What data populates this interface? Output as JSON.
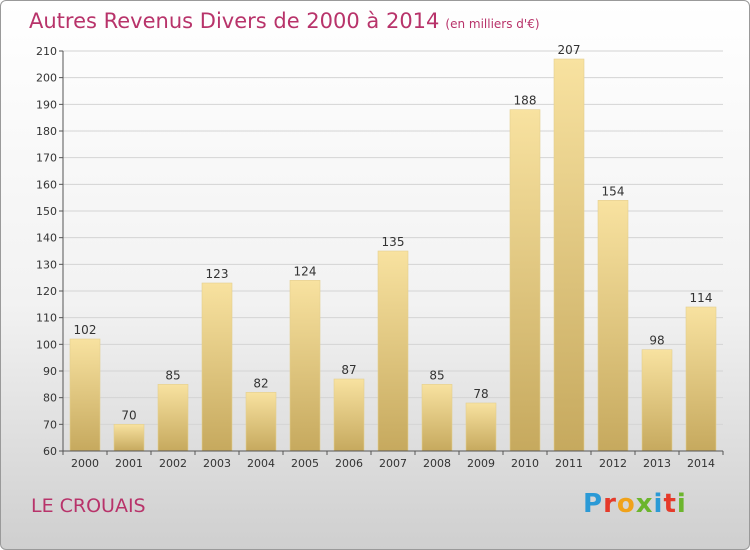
{
  "header": {
    "title": "Autres Revenus Divers de 2000 à 2014",
    "subtitle": "(en milliers d'€)"
  },
  "footer": {
    "location": "LE CROUAIS",
    "logo_letters": [
      "P",
      "r",
      "o",
      "x",
      "i",
      "t",
      "i"
    ],
    "logo_colors": [
      "#2b9ad6",
      "#e53a2a",
      "#f0a21a",
      "#6cb52d",
      "#2b9ad6",
      "#e53a2a",
      "#6cb52d"
    ]
  },
  "colors": {
    "title": "#b8336a",
    "bar_light": "#f8e2a0",
    "bar_dark": "#c6a95e",
    "grid": "#d4d4d4"
  },
  "chart_data": {
    "type": "bar",
    "title": "Autres Revenus Divers de 2000 à 2014",
    "subtitle": "(en milliers d'€)",
    "categories": [
      "2000",
      "2001",
      "2002",
      "2003",
      "2004",
      "2005",
      "2006",
      "2007",
      "2008",
      "2009",
      "2010",
      "2011",
      "2012",
      "2013",
      "2014"
    ],
    "values": [
      102,
      70,
      85,
      123,
      82,
      124,
      87,
      135,
      85,
      78,
      188,
      207,
      154,
      98,
      114
    ],
    "ylim": [
      60,
      210
    ],
    "yticks": [
      60,
      70,
      80,
      90,
      100,
      110,
      120,
      130,
      140,
      150,
      160,
      170,
      180,
      190,
      200,
      210
    ],
    "grid": true,
    "data_labels": true
  }
}
